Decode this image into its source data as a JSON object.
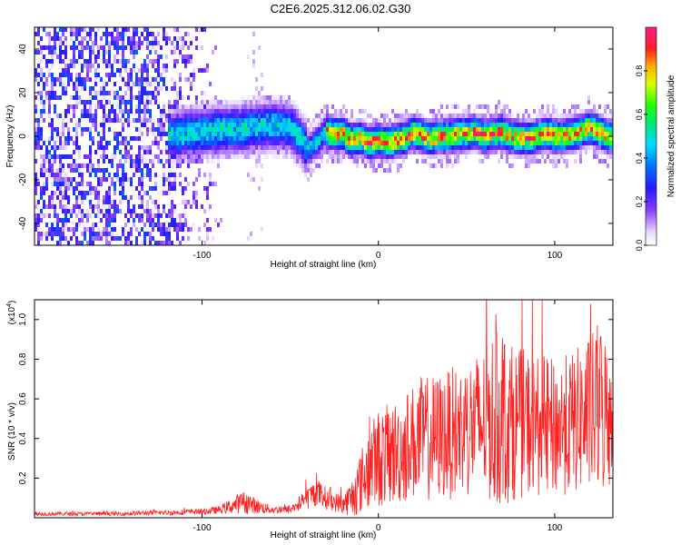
{
  "title": "C2E6.2025.312.06.02.G30",
  "chart_data": [
    {
      "type": "heatmap",
      "xlabel": "Height of straight line (km)",
      "ylabel": "Frequency (Hz)",
      "xlim": [
        -195,
        133
      ],
      "ylim": [
        -50,
        50
      ],
      "xticks": [
        -100,
        0,
        100
      ],
      "xtick_labels": [
        "-100",
        "0",
        "100"
      ],
      "yticks": [
        -40,
        -20,
        0,
        20,
        40
      ],
      "ytick_labels": [
        "-40",
        "-20",
        "0",
        "20",
        "40"
      ],
      "colorbar": {
        "label": "Normalized spectral amplitude",
        "range": [
          0,
          1
        ],
        "ticks": [
          0.0,
          0.2,
          0.4,
          0.6,
          0.8
        ],
        "tick_labels": [
          "0.0",
          "0.2",
          "0.4",
          "0.6",
          "0.8"
        ]
      },
      "ridge": {
        "x": [
          -120,
          -110,
          -100,
          -90,
          -80,
          -70,
          -60,
          -50,
          -45,
          -40,
          -35,
          -30,
          -25,
          -20,
          -15,
          -10,
          -5,
          0,
          5,
          10,
          15,
          20,
          25,
          30,
          35,
          40,
          45,
          50,
          55,
          60,
          65,
          70,
          75,
          80,
          85,
          90,
          95,
          100,
          105,
          110,
          115,
          120,
          125,
          130
        ],
        "y": [
          0,
          1,
          2,
          3,
          3,
          4,
          5,
          4,
          0,
          -6,
          -3,
          2,
          1,
          1,
          -2,
          -1,
          -3,
          -2,
          -3,
          -2,
          -1,
          2,
          0,
          -1,
          0,
          0,
          1,
          1,
          2,
          0,
          1,
          2,
          0,
          -1,
          -1,
          0,
          1,
          0,
          0,
          1,
          2,
          4,
          2,
          0
        ],
        "peak_amplitude": 0.95
      },
      "noise_region_x": [
        -195,
        -88
      ],
      "noise_amplitude": 0.3
    },
    {
      "type": "line",
      "xlabel": "Height of straight line (km)",
      "ylabel": "SNR (10 * v/v)",
      "scale_label": "(x10",
      "scale_exponent": "4",
      "scale_close": ")",
      "xlim": [
        -195,
        133
      ],
      "ylim": [
        0,
        1.1
      ],
      "xticks": [
        -100,
        0,
        100
      ],
      "xtick_labels": [
        "-100",
        "0",
        "100"
      ],
      "yticks": [
        0.2,
        0.4,
        0.6,
        0.8,
        1.0
      ],
      "ytick_labels": [
        "0.2",
        "0.4",
        "0.6",
        "0.8",
        "1.0"
      ],
      "series": [
        {
          "name": "SNR",
          "color": "#ff2020",
          "x": [
            -195,
            -150,
            -100,
            -90,
            -80,
            -75,
            -70,
            -60,
            -50,
            -40,
            -35,
            -30,
            -25,
            -20,
            -15,
            -10,
            -5,
            0,
            10,
            20,
            25,
            30,
            40,
            50,
            60,
            65,
            70,
            75,
            80,
            90,
            100,
            110,
            115,
            120,
            125,
            130,
            133
          ],
          "base": [
            0.02,
            0.02,
            0.03,
            0.04,
            0.07,
            0.08,
            0.06,
            0.04,
            0.04,
            0.1,
            0.13,
            0.1,
            0.08,
            0.07,
            0.1,
            0.18,
            0.26,
            0.3,
            0.33,
            0.38,
            0.4,
            0.4,
            0.42,
            0.45,
            0.48,
            0.5,
            0.5,
            0.48,
            0.48,
            0.47,
            0.45,
            0.48,
            0.5,
            0.52,
            0.55,
            0.52,
            0.5
          ],
          "amp": [
            0.01,
            0.01,
            0.015,
            0.02,
            0.05,
            0.06,
            0.04,
            0.02,
            0.02,
            0.06,
            0.07,
            0.06,
            0.05,
            0.05,
            0.1,
            0.16,
            0.22,
            0.25,
            0.27,
            0.3,
            0.32,
            0.32,
            0.33,
            0.35,
            0.38,
            0.45,
            0.45,
            0.4,
            0.38,
            0.36,
            0.35,
            0.36,
            0.38,
            0.4,
            0.45,
            0.4,
            0.35
          ]
        }
      ]
    }
  ]
}
